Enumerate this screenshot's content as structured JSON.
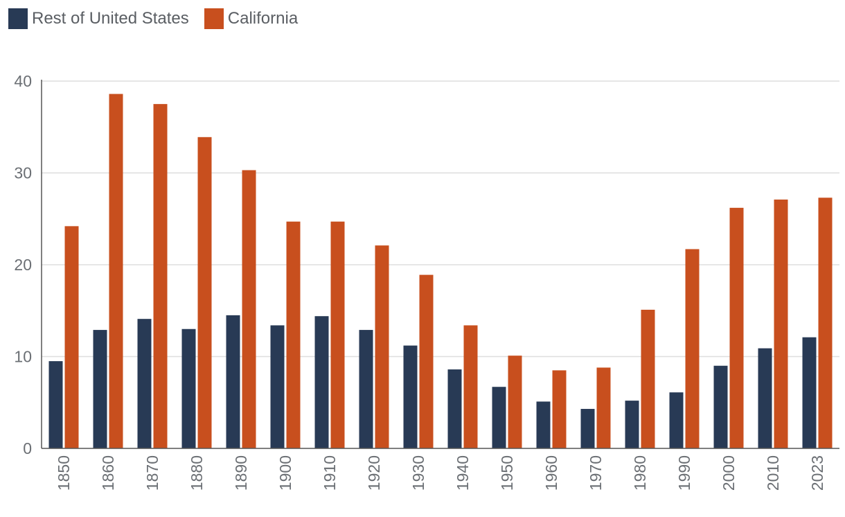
{
  "legend": {
    "rest_label": "Rest of United States",
    "ca_label": "California"
  },
  "colors": {
    "rest": "#283a55",
    "ca": "#c84f1e",
    "grid": "#dedede",
    "axis": "#555555"
  },
  "chart_data": {
    "type": "bar",
    "title": "",
    "xlabel": "",
    "ylabel": "",
    "ylim": [
      0,
      40
    ],
    "yticks": [
      0,
      10,
      20,
      30,
      40
    ],
    "categories": [
      "1850",
      "1860",
      "1870",
      "1880",
      "1890",
      "1900",
      "1910",
      "1920",
      "1930",
      "1940",
      "1950",
      "1960",
      "1970",
      "1980",
      "1990",
      "2000",
      "2010",
      "2023"
    ],
    "series": [
      {
        "name": "Rest of United States",
        "values": [
          9.5,
          12.9,
          14.1,
          13.0,
          14.5,
          13.4,
          14.4,
          12.9,
          11.2,
          8.6,
          6.7,
          5.1,
          4.3,
          5.2,
          6.1,
          9.0,
          10.9,
          12.1
        ]
      },
      {
        "name": "California",
        "values": [
          24.2,
          38.6,
          37.5,
          33.9,
          30.3,
          24.7,
          24.7,
          22.1,
          18.9,
          13.4,
          10.1,
          8.5,
          8.8,
          15.1,
          21.7,
          26.2,
          27.1,
          27.3
        ]
      }
    ]
  }
}
